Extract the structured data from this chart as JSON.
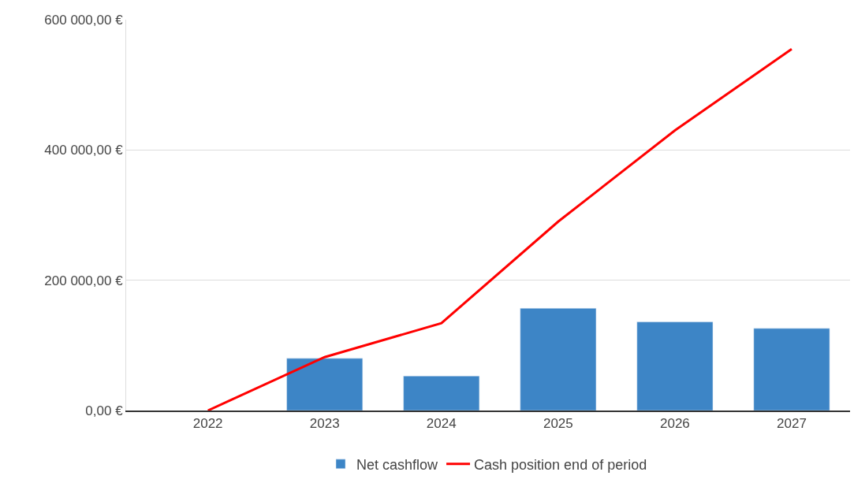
{
  "chart_data": {
    "type": "bar",
    "categories": [
      "2022",
      "2023",
      "2024",
      "2025",
      "2026",
      "2027"
    ],
    "series": [
      {
        "name": "Net cashflow",
        "color": "#3d85c6",
        "values": [
          null,
          80000,
          53000,
          157000,
          136000,
          126000
        ]
      },
      {
        "name": "Cash position end of period",
        "type": "line",
        "color": "#ff0000",
        "values": [
          0,
          82000,
          134000,
          290000,
          430000,
          555000
        ]
      }
    ],
    "ylim": [
      0,
      600000
    ],
    "yticks": [
      {
        "value": 0,
        "label": "0,00 €"
      },
      {
        "value": 200000,
        "label": "200 000,00 €"
      },
      {
        "value": 400000,
        "label": "400 000,00 €"
      },
      {
        "value": 600000,
        "label": "600 000,00 €"
      }
    ],
    "grid": "y",
    "legend": "bottom",
    "marker": "none",
    "line_style": "solid"
  }
}
